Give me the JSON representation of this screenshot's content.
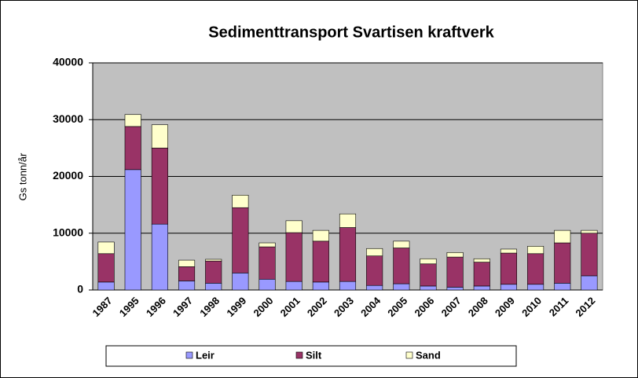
{
  "chart_data": {
    "type": "stacked_bar",
    "title": "Sedimenttransport Svartisen kraftverk",
    "y_label": "Gs tonn/år",
    "categories": [
      "1987",
      "1995",
      "1996",
      "1997",
      "1998",
      "1999",
      "2000",
      "2001",
      "2002",
      "2003",
      "2004",
      "2005",
      "2006",
      "2007",
      "2008",
      "2009",
      "2010",
      "2011",
      "2012"
    ],
    "series": [
      {
        "name": "Leir",
        "color": "#9999ff",
        "values": [
          1400,
          21200,
          11600,
          1600,
          1200,
          3000,
          1900,
          1500,
          1400,
          1500,
          800,
          1100,
          700,
          500,
          700,
          1000,
          1000,
          1200,
          2500
        ]
      },
      {
        "name": "Silt",
        "color": "#993366",
        "values": [
          5000,
          7600,
          13400,
          2500,
          3900,
          11500,
          5700,
          8600,
          7200,
          9500,
          5200,
          6300,
          3900,
          5300,
          4200,
          5500,
          5400,
          7100,
          7500
        ]
      },
      {
        "name": "Sand",
        "color": "#ffffcc",
        "values": [
          2050,
          2100,
          4100,
          1150,
          300,
          2200,
          700,
          2100,
          1900,
          2400,
          1300,
          1200,
          900,
          800,
          600,
          700,
          1300,
          2200,
          500
        ]
      }
    ],
    "ylim": [
      0,
      40000
    ],
    "yticks": [
      0,
      10000,
      20000,
      30000,
      40000
    ],
    "grid": true,
    "plot_background": "#c0c0c0",
    "legend": "bottom"
  }
}
